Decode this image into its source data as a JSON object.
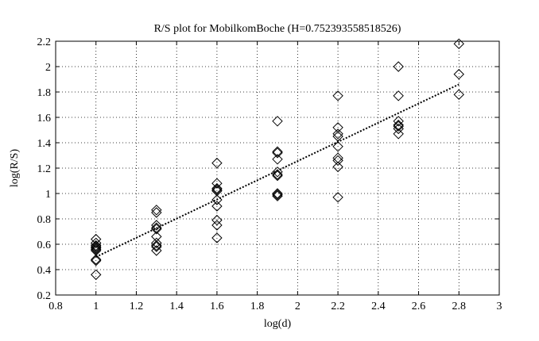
{
  "chart_data": {
    "type": "scatter",
    "title": "R/S plot for MobilkomBoche (H=0.752393558518526)",
    "xlabel": "log(d)",
    "ylabel": "log(R/S)",
    "xlim": [
      0.8,
      3
    ],
    "ylim": [
      0.2,
      2.2
    ],
    "xticks": [
      "0.8",
      "1",
      "1.2",
      "1.4",
      "1.6",
      "1.8",
      "2",
      "2.2",
      "2.4",
      "2.6",
      "2.8",
      "3"
    ],
    "yticks": [
      "0.2",
      "0.4",
      "0.6",
      "0.8",
      "1",
      "1.2",
      "1.4",
      "1.6",
      "1.8",
      "2",
      "2.2"
    ],
    "grid": true,
    "marker": "diamond",
    "points": [
      [
        1.0,
        0.64
      ],
      [
        1.0,
        0.61
      ],
      [
        1.0,
        0.59
      ],
      [
        1.0,
        0.58
      ],
      [
        1.0,
        0.57
      ],
      [
        1.0,
        0.56
      ],
      [
        1.0,
        0.55
      ],
      [
        1.0,
        0.48
      ],
      [
        1.0,
        0.47
      ],
      [
        1.0,
        0.36
      ],
      [
        1.3,
        0.87
      ],
      [
        1.3,
        0.85
      ],
      [
        1.3,
        0.75
      ],
      [
        1.3,
        0.73
      ],
      [
        1.3,
        0.72
      ],
      [
        1.3,
        0.66
      ],
      [
        1.3,
        0.61
      ],
      [
        1.3,
        0.59
      ],
      [
        1.3,
        0.58
      ],
      [
        1.3,
        0.55
      ],
      [
        1.6,
        1.24
      ],
      [
        1.6,
        1.08
      ],
      [
        1.6,
        1.04
      ],
      [
        1.6,
        1.03
      ],
      [
        1.6,
        1.02
      ],
      [
        1.6,
        0.95
      ],
      [
        1.6,
        0.9
      ],
      [
        1.6,
        0.79
      ],
      [
        1.6,
        0.75
      ],
      [
        1.6,
        0.65
      ],
      [
        1.9,
        1.57
      ],
      [
        1.9,
        1.33
      ],
      [
        1.9,
        1.32
      ],
      [
        1.9,
        1.27
      ],
      [
        1.9,
        1.17
      ],
      [
        1.9,
        1.15
      ],
      [
        1.9,
        1.14
      ],
      [
        1.9,
        1.0
      ],
      [
        1.9,
        0.99
      ],
      [
        1.9,
        0.98
      ],
      [
        2.2,
        1.77
      ],
      [
        2.2,
        1.52
      ],
      [
        2.2,
        1.47
      ],
      [
        2.2,
        1.45
      ],
      [
        2.2,
        1.37
      ],
      [
        2.2,
        1.28
      ],
      [
        2.2,
        1.26
      ],
      [
        2.2,
        1.21
      ],
      [
        2.2,
        0.97
      ],
      [
        2.5,
        2.0
      ],
      [
        2.5,
        1.77
      ],
      [
        2.5,
        1.57
      ],
      [
        2.5,
        1.54
      ],
      [
        2.5,
        1.53
      ],
      [
        2.5,
        1.51
      ],
      [
        2.5,
        1.47
      ],
      [
        2.8,
        2.18
      ],
      [
        2.8,
        1.94
      ],
      [
        2.8,
        1.78
      ]
    ],
    "fit_line": {
      "x": [
        1.0,
        2.8
      ],
      "y": [
        0.5,
        1.86
      ]
    }
  }
}
